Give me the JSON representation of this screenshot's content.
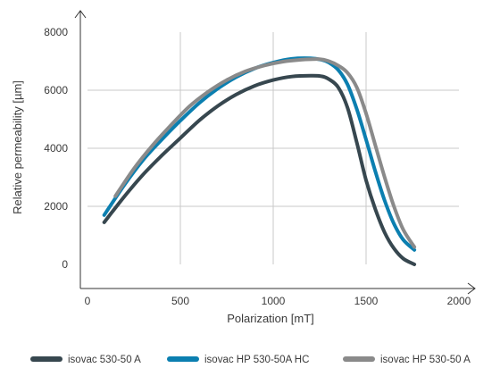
{
  "chart_data": {
    "type": "line",
    "title": "",
    "xlabel": "Polarization [mT]",
    "ylabel": "Relative permeability [µm]",
    "xlim": [
      0,
      2000
    ],
    "ylim": [
      0,
      8000
    ],
    "x_ticks": [
      "0",
      "500",
      "1000",
      "1500",
      "2000"
    ],
    "y_ticks": [
      "0",
      "2000",
      "4000",
      "6000",
      "8000"
    ],
    "grid": true,
    "legend_position": "bottom",
    "series": [
      {
        "name": "isovac 530-50 A",
        "color": "#37474f",
        "x": [
          90,
          200,
          300,
          400,
          500,
          600,
          700,
          800,
          900,
          1000,
          1100,
          1200,
          1260,
          1300,
          1350,
          1400,
          1450,
          1500,
          1550,
          1600,
          1650,
          1700,
          1760
        ],
        "y": [
          1450,
          2350,
          3100,
          3750,
          4350,
          4950,
          5450,
          5850,
          6150,
          6350,
          6470,
          6500,
          6480,
          6380,
          6100,
          5400,
          4200,
          2900,
          1900,
          1100,
          550,
          200,
          0
        ]
      },
      {
        "name": "isovac HP 530-50A HC",
        "color": "#0b7fb0",
        "x": [
          90,
          200,
          300,
          400,
          500,
          600,
          700,
          800,
          900,
          1000,
          1100,
          1200,
          1260,
          1300,
          1350,
          1400,
          1450,
          1500,
          1550,
          1600,
          1650,
          1700,
          1760
        ],
        "y": [
          1700,
          2750,
          3600,
          4300,
          4950,
          5550,
          6050,
          6450,
          6750,
          6950,
          7080,
          7100,
          7050,
          6950,
          6700,
          6200,
          5350,
          4300,
          3200,
          2200,
          1400,
          850,
          500
        ]
      },
      {
        "name": "isovac HP 530-50 A",
        "color": "#8a8a8a",
        "x": [
          150,
          250,
          350,
          450,
          550,
          650,
          750,
          850,
          950,
          1050,
          1150,
          1250,
          1300,
          1350,
          1400,
          1450,
          1500,
          1550,
          1600,
          1650,
          1700,
          1760
        ],
        "y": [
          2350,
          3300,
          4100,
          4800,
          5450,
          5950,
          6350,
          6650,
          6850,
          6980,
          7050,
          7070,
          7000,
          6850,
          6600,
          6100,
          5200,
          4100,
          3000,
          2000,
          1200,
          600
        ]
      }
    ]
  }
}
